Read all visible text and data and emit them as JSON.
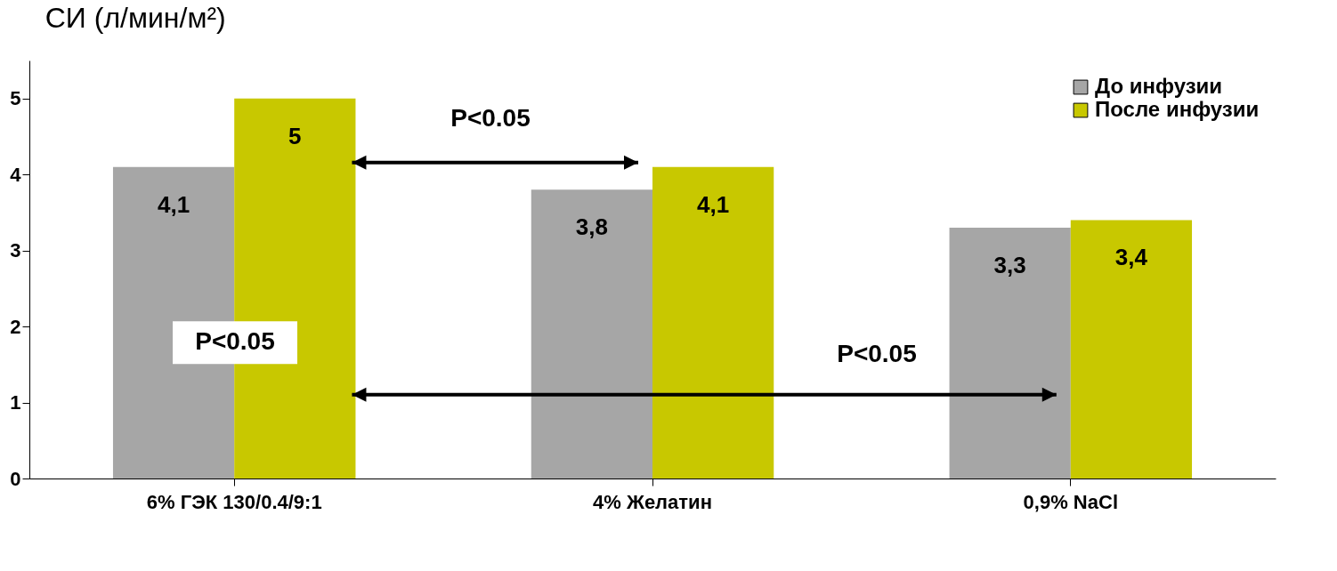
{
  "chart_data": {
    "type": "bar",
    "title": "СИ (л/мин/м²)",
    "categories": [
      "6% ГЭК 130/0.4/9:1",
      "4% Желатин",
      "0,9% NaCl"
    ],
    "series": [
      {
        "name": "До инфузии",
        "color": "#a6a6a6",
        "values": [
          4.1,
          3.8,
          3.3
        ],
        "value_labels": [
          "4,1",
          "3,8",
          "3,3"
        ]
      },
      {
        "name": "После инфузии",
        "color": "#c8c800",
        "values": [
          5,
          4.1,
          3.4
        ],
        "value_labels": [
          "5",
          "4,1",
          "3,4"
        ]
      }
    ],
    "annotations": [
      "P<0.05",
      "P<0.05",
      "P<0.05"
    ],
    "ylim": [
      0,
      5.5
    ],
    "yticks": [
      0,
      1,
      2,
      3,
      4,
      5
    ],
    "grid": false,
    "legend": "top right"
  }
}
